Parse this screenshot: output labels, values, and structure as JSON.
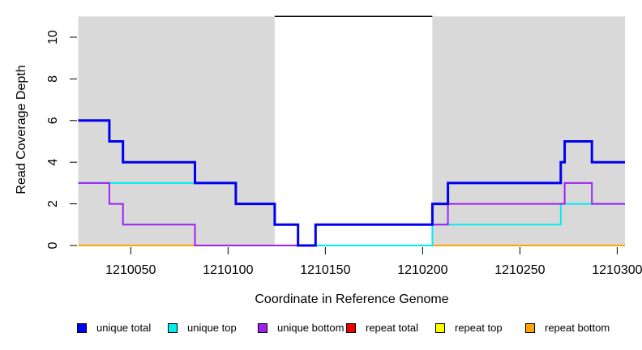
{
  "chart_data": {
    "type": "line",
    "subtype": "step-function-coverage-plot",
    "title": "",
    "xlabel": "Coordinate in Reference Genome",
    "ylabel": "Read Coverage Depth",
    "xlim": [
      1210023,
      1210304
    ],
    "ylim": [
      0,
      11
    ],
    "x_ticks": [
      1210050,
      1210100,
      1210150,
      1210200,
      1210250,
      1210300
    ],
    "y_ticks": [
      0,
      2,
      4,
      6,
      8,
      10
    ],
    "grid": false,
    "legend_position": "bottom",
    "axis_box": "none",
    "background_regions": [
      {
        "name": "shaded-region-left",
        "x": [
          1210023,
          1210124
        ],
        "color": "#D9D9D9"
      },
      {
        "name": "shaded-region-right",
        "x": [
          1210205,
          1210304
        ],
        "color": "#D9D9D9"
      }
    ],
    "annotation_segment": {
      "name": "gap-span-line",
      "x": [
        1210124,
        1210205
      ],
      "y": 11,
      "color": "#000000",
      "width": 1.5
    },
    "series": [
      {
        "name": "repeat total",
        "color": "#EE0000",
        "width": 2,
        "steps": [
          [
            1210023,
            0
          ]
        ]
      },
      {
        "name": "repeat top",
        "color": "#FFFF00",
        "width": 2,
        "steps": [
          [
            1210023,
            0
          ]
        ]
      },
      {
        "name": "repeat bottom",
        "color": "#FFA500",
        "width": 2,
        "steps": [
          [
            1210023,
            0
          ]
        ]
      },
      {
        "name": "unique top",
        "color": "#00EEEE",
        "width": 2,
        "steps": [
          [
            1210023,
            3
          ],
          [
            1210104,
            2
          ],
          [
            1210124,
            1
          ],
          [
            1210136,
            0
          ],
          [
            1210205,
            1
          ],
          [
            1210271,
            2
          ]
        ]
      },
      {
        "name": "unique bottom",
        "color": "#A020F0",
        "width": 2,
        "steps": [
          [
            1210023,
            3
          ],
          [
            1210039,
            2
          ],
          [
            1210046,
            1
          ],
          [
            1210083,
            0
          ],
          [
            1210145,
            1
          ],
          [
            1210213,
            2
          ],
          [
            1210273,
            3
          ],
          [
            1210287,
            2
          ]
        ]
      },
      {
        "name": "unique total",
        "color": "#0000EE",
        "width": 3,
        "steps": [
          [
            1210023,
            6
          ],
          [
            1210039,
            5
          ],
          [
            1210046,
            4
          ],
          [
            1210083,
            3
          ],
          [
            1210104,
            2
          ],
          [
            1210124,
            1
          ],
          [
            1210136,
            0
          ],
          [
            1210145,
            1
          ],
          [
            1210205,
            2
          ],
          [
            1210213,
            3
          ],
          [
            1210271,
            4
          ],
          [
            1210273,
            5
          ],
          [
            1210287,
            4
          ]
        ]
      }
    ]
  },
  "legend": {
    "items": [
      {
        "label": "unique total",
        "color": "#0000EE"
      },
      {
        "label": "unique top",
        "color": "#00EEEE"
      },
      {
        "label": "unique bottom",
        "color": "#A020F0"
      },
      {
        "label": "repeat total",
        "color": "#EE0000"
      },
      {
        "label": "repeat top",
        "color": "#FFFF00"
      },
      {
        "label": "repeat bottom",
        "color": "#FFA500"
      }
    ]
  }
}
